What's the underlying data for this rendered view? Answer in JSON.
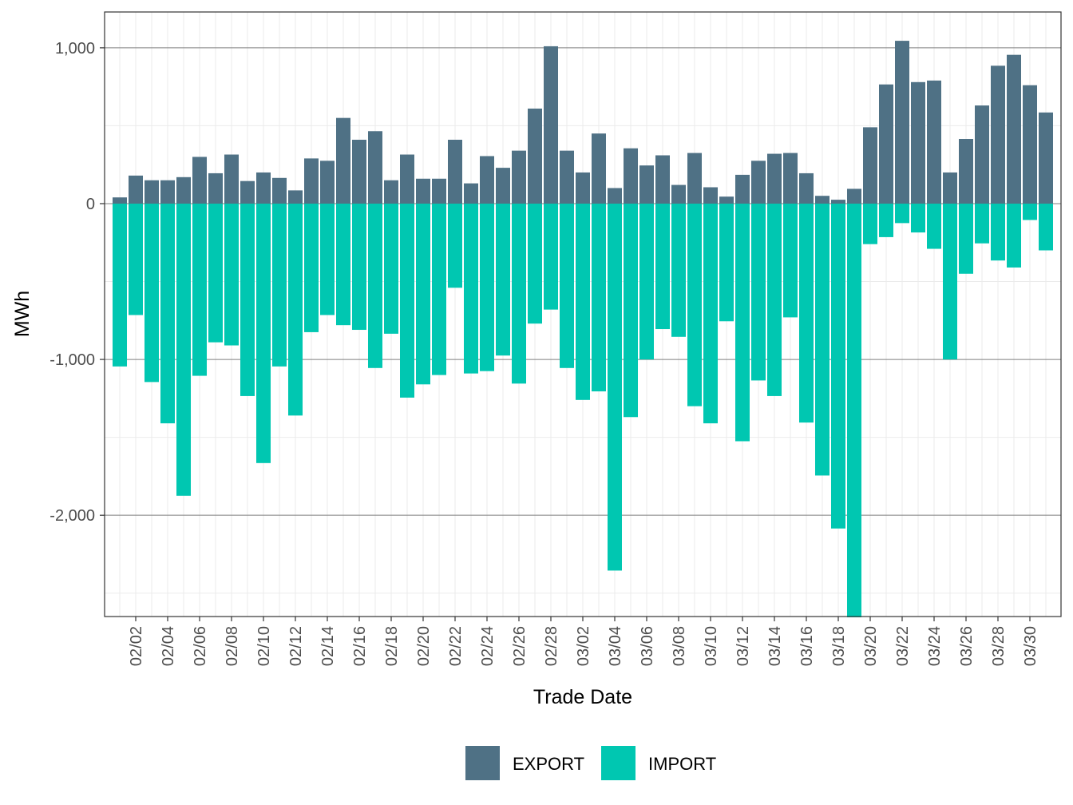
{
  "chart_data": {
    "type": "bar",
    "stacked": "diverging",
    "xlabel": "Trade Date",
    "ylabel": "MWh",
    "ylim": [
      -2650,
      1230
    ],
    "yticks": [
      {
        "value": 1000,
        "label": "1,000"
      },
      {
        "value": 0,
        "label": "0"
      },
      {
        "value": -1000,
        "label": "-1,000"
      },
      {
        "value": -2000,
        "label": "-2,000"
      }
    ],
    "grid": true,
    "legend_position": "bottom",
    "categories": [
      "02/01",
      "02/02",
      "02/03",
      "02/04",
      "02/05",
      "02/06",
      "02/07",
      "02/08",
      "02/09",
      "02/10",
      "02/11",
      "02/12",
      "02/13",
      "02/14",
      "02/15",
      "02/16",
      "02/17",
      "02/18",
      "02/19",
      "02/20",
      "02/21",
      "02/22",
      "02/23",
      "02/24",
      "02/25",
      "02/26",
      "02/27",
      "02/28",
      "03/01",
      "03/02",
      "03/03",
      "03/04",
      "03/05",
      "03/06",
      "03/07",
      "03/08",
      "03/09",
      "03/10",
      "03/11",
      "03/12",
      "03/13",
      "03/14",
      "03/15",
      "03/16",
      "03/17",
      "03/18",
      "03/19",
      "03/20",
      "03/21",
      "03/22",
      "03/23",
      "03/24",
      "03/25",
      "03/26",
      "03/27",
      "03/28",
      "03/29",
      "03/30",
      "03/31"
    ],
    "xticks": [
      "02/02",
      "02/04",
      "02/06",
      "02/08",
      "02/10",
      "02/12",
      "02/14",
      "02/16",
      "02/18",
      "02/20",
      "02/22",
      "02/24",
      "02/26",
      "02/28",
      "03/02",
      "03/04",
      "03/06",
      "03/08",
      "03/10",
      "03/12",
      "03/14",
      "03/16",
      "03/18",
      "03/20",
      "03/22",
      "03/24",
      "03/26",
      "03/28",
      "03/30"
    ],
    "series": [
      {
        "name": "EXPORT",
        "color": "#4f7185",
        "values": [
          40,
          180,
          150,
          150,
          170,
          300,
          195,
          315,
          145,
          200,
          165,
          85,
          290,
          275,
          550,
          410,
          465,
          150,
          315,
          160,
          160,
          410,
          130,
          305,
          230,
          340,
          610,
          1010,
          340,
          200,
          450,
          100,
          355,
          245,
          310,
          120,
          325,
          105,
          45,
          185,
          275,
          320,
          325,
          195,
          50,
          25,
          95,
          490,
          765,
          1045,
          780,
          790,
          200,
          415,
          630,
          885,
          955,
          760,
          585
        ]
      },
      {
        "name": "IMPORT",
        "color": "#00c7b1",
        "values": [
          -1045,
          -715,
          -1145,
          -1410,
          -1875,
          -1105,
          -890,
          -910,
          -1235,
          -1665,
          -1045,
          -1360,
          -825,
          -715,
          -780,
          -810,
          -1055,
          -835,
          -1245,
          -1160,
          -1100,
          -540,
          -1090,
          -1075,
          -975,
          -1155,
          -770,
          -680,
          -1055,
          -1260,
          -1205,
          -2355,
          -1370,
          -1000,
          -805,
          -855,
          -1300,
          -1410,
          -755,
          -1525,
          -1135,
          -1235,
          -730,
          -1405,
          -1745,
          -2085,
          -2655,
          -260,
          -215,
          -125,
          -185,
          -290,
          -1000,
          -450,
          -255,
          -365,
          -410,
          -105,
          -300
        ]
      }
    ]
  }
}
